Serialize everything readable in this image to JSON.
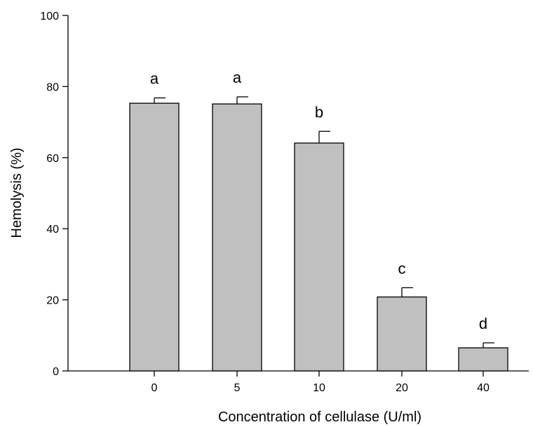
{
  "chart_data": {
    "type": "bar",
    "categories": [
      "0",
      "5",
      "10",
      "20",
      "40"
    ],
    "values": [
      75.3,
      75.1,
      64.1,
      20.8,
      6.5
    ],
    "error": [
      1.5,
      2.0,
      3.3,
      2.6,
      1.4
    ],
    "significance": [
      "a",
      "a",
      "b",
      "c",
      "d"
    ],
    "title": "",
    "xlabel": "Concentration of cellulase (U/ml)",
    "ylabel": "Hemolysis (%)",
    "ylim": [
      0,
      100
    ],
    "yticks": [
      "0",
      "20",
      "40",
      "60",
      "80",
      "100"
    ],
    "grid": false,
    "bar_color": "#c0c0c0",
    "bar_edge_color": "#000000"
  }
}
